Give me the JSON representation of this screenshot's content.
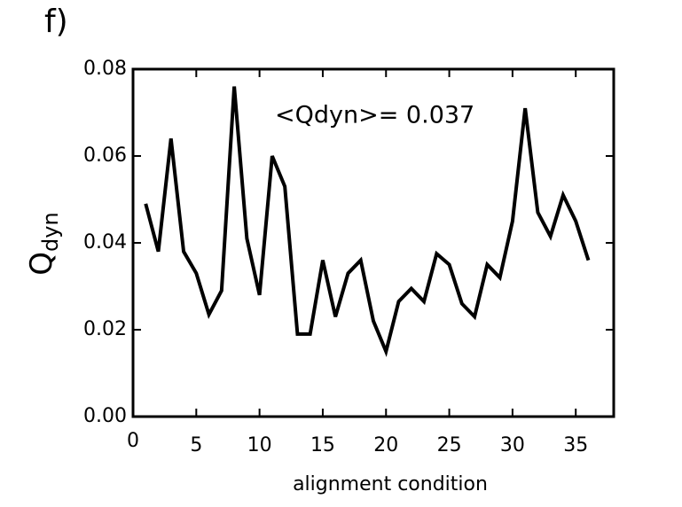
{
  "chart_data": {
    "type": "line",
    "panel_label": "f)",
    "annotation": "<Qdyn>= 0.037",
    "xlabel": "alignment condition",
    "ylabel": "Q",
    "ylabel_subscript": "dyn",
    "x": [
      1,
      2,
      3,
      4,
      5,
      6,
      7,
      8,
      9,
      10,
      11,
      12,
      13,
      14,
      15,
      16,
      17,
      18,
      19,
      20,
      21,
      22,
      23,
      24,
      25,
      26,
      27,
      28,
      29,
      30,
      31,
      32,
      33,
      34,
      35,
      36
    ],
    "values": [
      0.049,
      0.038,
      0.064,
      0.038,
      0.033,
      0.0235,
      0.029,
      0.076,
      0.041,
      0.028,
      0.06,
      0.053,
      0.019,
      0.019,
      0.036,
      0.023,
      0.033,
      0.036,
      0.022,
      0.015,
      0.0265,
      0.0295,
      0.0265,
      0.0375,
      0.035,
      0.026,
      0.023,
      0.035,
      0.032,
      0.045,
      0.071,
      0.047,
      0.0415,
      0.051,
      0.045,
      0.036
    ],
    "color": "#000000",
    "xlim": [
      0,
      38
    ],
    "ylim": [
      0,
      0.08
    ],
    "xticks": [
      0,
      5,
      10,
      15,
      20,
      25,
      30,
      35
    ],
    "yticks": [
      {
        "value": 0,
        "label": "0.00"
      },
      {
        "value": 0.02,
        "label": "0.02"
      },
      {
        "value": 0.04,
        "label": "0.04"
      },
      {
        "value": 0.06,
        "label": "0.06"
      },
      {
        "value": 0.08,
        "label": "0.08"
      }
    ]
  }
}
